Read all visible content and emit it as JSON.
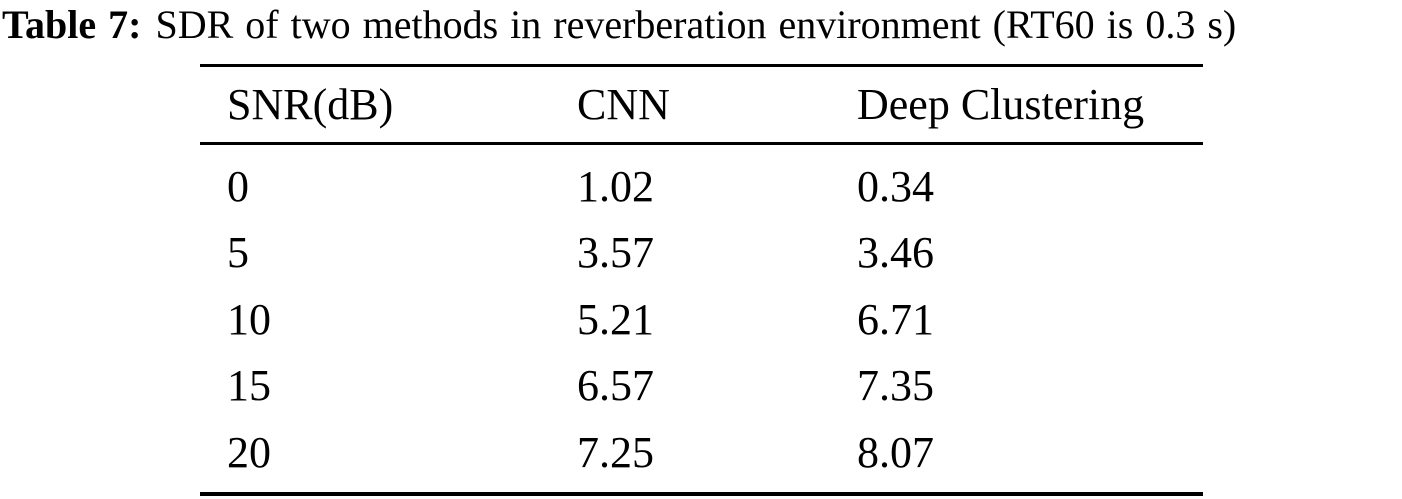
{
  "caption": {
    "label": "Table 7:",
    "text": "SDR of two methods in reverberation environment (RT60 is 0.3 s)"
  },
  "table": {
    "columns": [
      "SNR(dB)",
      "CNN",
      "Deep Clustering"
    ],
    "rows": [
      {
        "snr": "0",
        "cnn": "1.02",
        "dc": "0.34"
      },
      {
        "snr": "5",
        "cnn": "3.57",
        "dc": "3.46"
      },
      {
        "snr": "10",
        "cnn": "5.21",
        "dc": "6.71"
      },
      {
        "snr": "15",
        "cnn": "6.57",
        "dc": "7.35"
      },
      {
        "snr": "20",
        "cnn": "7.25",
        "dc": "8.07"
      }
    ]
  },
  "chart_data": {
    "type": "table",
    "title": "Table 7: SDR of two methods in reverberation environment (RT60 is 0.3 s)",
    "categories": [
      0,
      5,
      10,
      15,
      20
    ],
    "xlabel": "SNR(dB)",
    "ylabel": "SDR",
    "series": [
      {
        "name": "CNN",
        "values": [
          1.02,
          3.57,
          5.21,
          6.57,
          7.25
        ]
      },
      {
        "name": "Deep Clustering",
        "values": [
          0.34,
          3.46,
          6.71,
          7.35,
          8.07
        ]
      }
    ]
  }
}
